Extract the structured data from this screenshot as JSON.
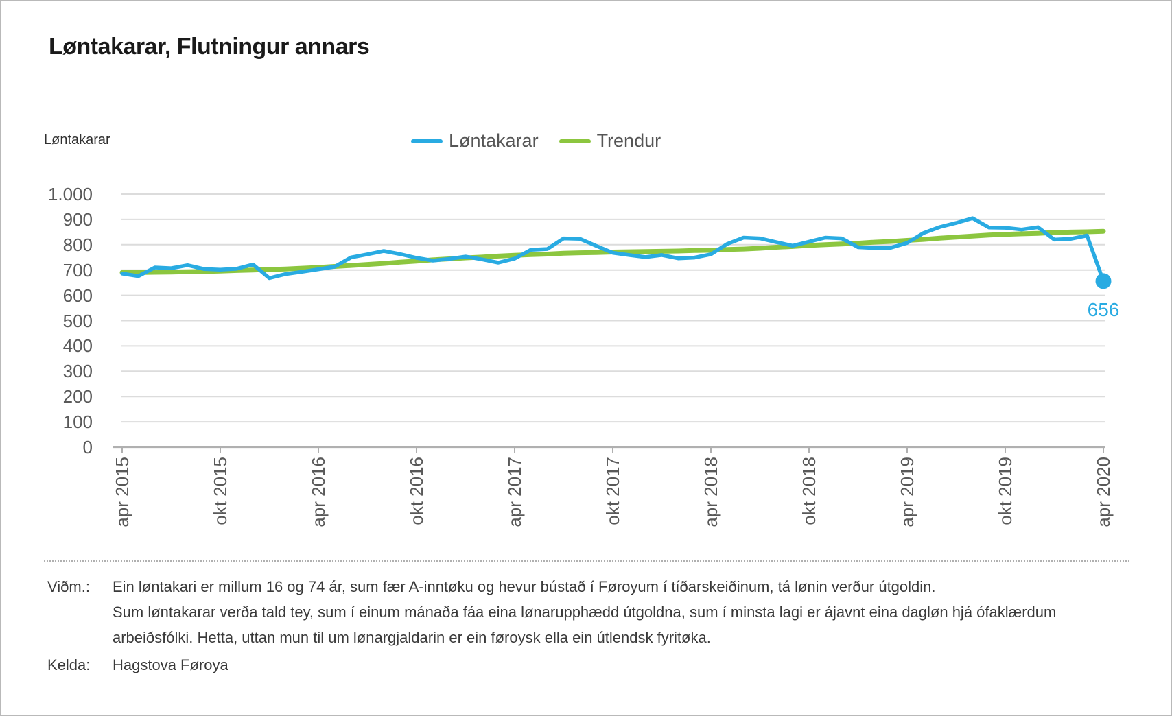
{
  "title": "Løntakarar, Flutningur annars",
  "axis_unit_label": "Løntakarar",
  "legend": [
    {
      "label": "Løntakarar",
      "color": "#29abe2"
    },
    {
      "label": "Trendur",
      "color": "#8cc63f"
    }
  ],
  "chart_data": {
    "type": "line",
    "title": "Løntakarar, Flutningur annars",
    "xlabel": "",
    "ylabel": "Løntakarar",
    "x_interval": "month",
    "x_start": "apr 2015",
    "x_end": "apr 2020",
    "x_tick_labels": [
      "apr 2015",
      "okt 2015",
      "apr 2016",
      "okt 2016",
      "apr 2017",
      "okt 2017",
      "apr 2018",
      "okt 2018",
      "apr 2019",
      "okt 2019",
      "apr 2020"
    ],
    "y_ticks": [
      0,
      100,
      200,
      300,
      400,
      500,
      600,
      700,
      800,
      900,
      1000
    ],
    "y_tick_labels": [
      "0",
      "100",
      "200",
      "300",
      "400",
      "500",
      "600",
      "700",
      "800",
      "900",
      "1.000"
    ],
    "ylim": [
      0,
      1000
    ],
    "grid": true,
    "legend_position": "top-center",
    "series": [
      {
        "name": "Løntakarar",
        "color": "#29abe2",
        "values": [
          686,
          676,
          710,
          707,
          719,
          704,
          701,
          705,
          722,
          668,
          684,
          693,
          703,
          713,
          750,
          762,
          775,
          763,
          748,
          737,
          744,
          753,
          742,
          729,
          745,
          780,
          783,
          825,
          823,
          795,
          768,
          759,
          751,
          759,
          746,
          749,
          762,
          803,
          828,
          825,
          810,
          796,
          812,
          828,
          825,
          790,
          787,
          788,
          807,
          846,
          870,
          886,
          905,
          868,
          867,
          860,
          869,
          820,
          823,
          836,
          656
        ]
      },
      {
        "name": "Trendur",
        "color": "#8cc63f",
        "values": [
          690,
          690,
          691,
          692,
          693,
          694,
          696,
          698,
          700,
          702,
          704,
          707,
          710,
          714,
          718,
          722,
          726,
          731,
          735,
          740,
          744,
          748,
          751,
          755,
          758,
          761,
          763,
          766,
          768,
          769,
          771,
          772,
          773,
          774,
          775,
          777,
          778,
          781,
          783,
          786,
          790,
          793,
          797,
          800,
          803,
          806,
          810,
          813,
          817,
          821,
          826,
          830,
          834,
          838,
          841,
          843,
          845,
          848,
          850,
          851,
          853
        ]
      }
    ],
    "annotation": {
      "text": "656",
      "series": "Løntakarar",
      "point_index": 60,
      "value": 656
    }
  },
  "footer": {
    "note_label": "Viðm.:",
    "note_lines": [
      "Ein løntakari er millum 16 og 74 ár, sum fær A-inntøku og hevur bústað í Føroyum í tíðarskeiðinum, tá lønin verður útgoldin.",
      "Sum løntakarar verða tald tey, sum í einum mánaða fáa eina lønarupphædd útgoldna, sum í minsta lagi er ájavnt eina dagløn hjá ófaklærdum",
      "arbeiðsfólki. Hetta, uttan mun til um lønargjaldarin er ein føroysk ella ein útlendsk fyritøka."
    ],
    "source_label": "Kelda:",
    "source": "Hagstova Føroya"
  },
  "colors": {
    "accent_blue": "#29abe2",
    "accent_green": "#8cc63f",
    "gridline": "#dcdcdc",
    "axis_line": "#b0b0b0",
    "title_text": "#1a1a1a",
    "axis_text": "#595959",
    "note_text": "#3a3a3a"
  }
}
